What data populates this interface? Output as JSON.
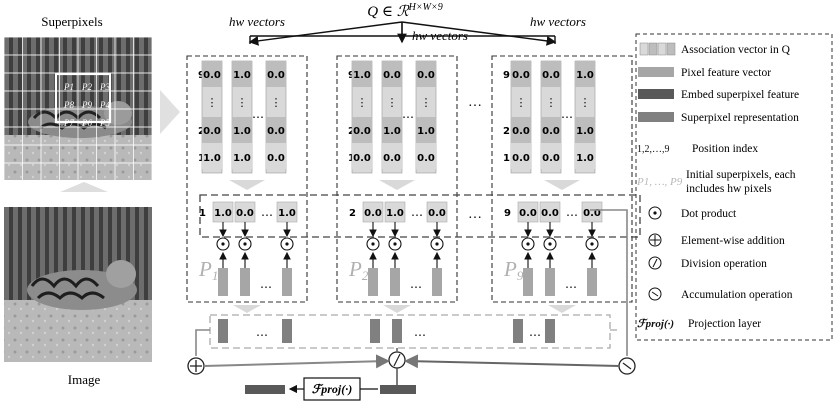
{
  "left_panel": {
    "superpixels_label": "Superpixels",
    "image_label": "Image",
    "grid_labels": [
      "P1",
      "P2",
      "P3",
      "P8",
      "P9",
      "P4",
      "P7",
      "P6",
      "P5"
    ]
  },
  "top": {
    "q_label": "Q ∈ ℛ^{H×W×9}",
    "hw_vectors_label": "hw vectors"
  },
  "columns": [
    {
      "id": "P1",
      "group_label": "P1",
      "position_labels": [
        "9",
        "2",
        "1"
      ],
      "vectors": [
        [
          "0.0",
          "0.0",
          "1.0"
        ],
        [
          "1.0",
          "1.0",
          "1.0"
        ],
        [
          "0.0",
          "0.0",
          "0.0"
        ]
      ],
      "result_position": "1",
      "result_values": [
        "1.0",
        "0.0",
        "…",
        "1.0"
      ]
    },
    {
      "id": "P2",
      "group_label": "P2",
      "position_labels": [
        "9",
        "2",
        "1"
      ],
      "vectors": [
        [
          "1.0",
          "0.0",
          "0.0"
        ],
        [
          "0.0",
          "1.0",
          "0.0"
        ],
        [
          "0.0",
          "1.0",
          "0.0"
        ]
      ],
      "result_position": "2",
      "result_values": [
        "0.0",
        "1.0",
        "…",
        "0.0"
      ]
    },
    {
      "id": "P9",
      "group_label": "P9",
      "position_labels": [
        "9",
        "2",
        "1"
      ],
      "vectors": [
        [
          "0.0",
          "0.0",
          "0.0"
        ],
        [
          "0.0",
          "0.0",
          "0.0"
        ],
        [
          "1.0",
          "1.0",
          "1.0"
        ]
      ],
      "result_position": "9",
      "result_values": [
        "0.0",
        "0.0",
        "…",
        "0.0"
      ]
    }
  ],
  "ellipsis": "…",
  "vdots": "⋮",
  "bottom": {
    "proj_label": "ℱproj(·)"
  },
  "legend": {
    "items": [
      {
        "icon": "association-vector-icon",
        "label": "Association vector in Q"
      },
      {
        "icon": "pixel-feature-bar-icon",
        "label": "Pixel feature vector"
      },
      {
        "icon": "embed-superpixel-bar-icon",
        "label": "Embed superpixel feature"
      },
      {
        "icon": "superpixel-representation-bar-icon",
        "label": "Superpixel representation"
      },
      {
        "icon": "position-index",
        "label": "Position index",
        "prefix": "1,2,…,9"
      },
      {
        "icon": "initial-superpixels",
        "label": "Initial superpixels, each",
        "label2": "includes hw  pixels",
        "prefix": "P1, …, P9"
      },
      {
        "icon": "dot-product-icon",
        "label": "Dot product"
      },
      {
        "icon": "element-wise-addition-icon",
        "label": "Element-wise addition"
      },
      {
        "icon": "division-icon",
        "label": "Division operation"
      },
      {
        "icon": "accumulation-icon",
        "label": "Accumulation operation"
      },
      {
        "icon": "projection-layer-icon",
        "label": "Projection layer",
        "prefix": "ℱproj(·)"
      }
    ]
  },
  "colors": {
    "cell_light": "#d9d9d9",
    "cell_mid": "#bdbdbd",
    "pixel_feature": "#a6a6a6",
    "embed_feature": "#595959",
    "superpixel_repr": "#808080",
    "arrow_gray": "#c8c8c8"
  }
}
